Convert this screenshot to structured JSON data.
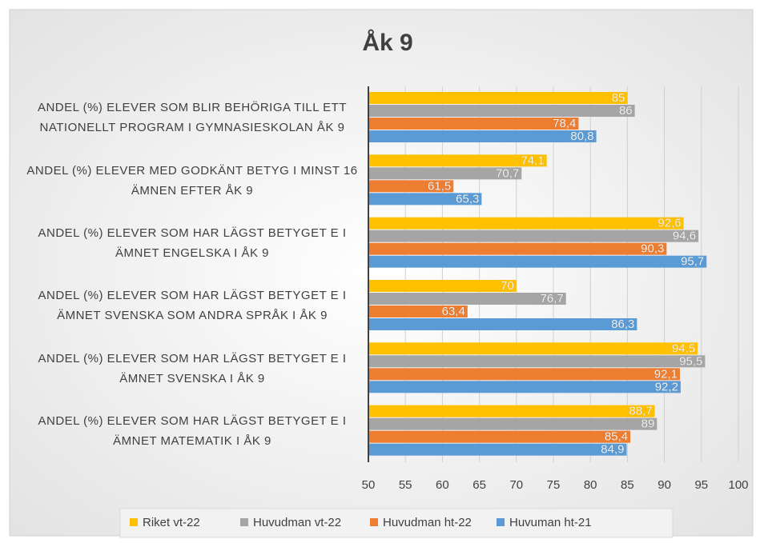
{
  "chart_data": {
    "type": "bar",
    "orientation": "horizontal",
    "title": "Åk 9",
    "categories": [
      "ANDEL (%) ELEVER SOM BLIR BEHÖRIGA TILL ETT NATIONELLT PROGRAM I GYMNASIESKOLAN ÅK 9",
      "ANDEL (%) ELEVER MED GODKÄNT BETYG I MINST 16 ÄMNEN EFTER ÅK 9",
      "ANDEL (%) ELEVER SOM HAR LÄGST BETYGET E I ÄMNET ENGELSKA I ÅK 9",
      "ANDEL (%) ELEVER SOM HAR LÄGST BETYGET E I ÄMNET SVENSKA SOM ANDRA SPRÅK I ÅK 9",
      "ANDEL (%) ELEVER SOM HAR LÄGST BETYGET E I ÄMNET SVENSKA  I ÅK 9",
      "ANDEL (%) ELEVER SOM HAR LÄGST BETYGET E I ÄMNET MATEMATIK I ÅK 9"
    ],
    "series": [
      {
        "name": "Riket vt-22",
        "color": "#ffc000",
        "values": [
          85,
          74.1,
          92.6,
          70,
          94.5,
          88.7
        ],
        "value_labels": [
          "85",
          "74,1",
          "92,6",
          "70",
          "94,5",
          "88,7"
        ]
      },
      {
        "name": "Huvudman vt-22",
        "color": "#a5a5a5",
        "values": [
          86,
          70.7,
          94.6,
          76.7,
          95.5,
          89
        ],
        "value_labels": [
          "86",
          "70,7",
          "94,6",
          "76,7",
          "95,5",
          "89"
        ]
      },
      {
        "name": "Huvudman ht-22",
        "color": "#ed7d31",
        "values": [
          78.4,
          61.5,
          90.3,
          63.4,
          92.1,
          85.4
        ],
        "value_labels": [
          "78,4",
          "61,5",
          "90,3",
          "63,4",
          "92,1",
          "85,4"
        ]
      },
      {
        "name": "Huvuman ht-21",
        "color": "#5b9bd5",
        "values": [
          80.8,
          65.3,
          95.7,
          86.3,
          92.2,
          84.9
        ],
        "value_labels": [
          "80,8",
          "65,3",
          "95,7",
          "86,3",
          "92,2",
          "84,9"
        ]
      }
    ],
    "xlim": [
      50,
      100
    ],
    "xticks": [
      50,
      55,
      60,
      65,
      70,
      75,
      80,
      85,
      90,
      95,
      100
    ],
    "grid": true,
    "legend": "bottom"
  }
}
